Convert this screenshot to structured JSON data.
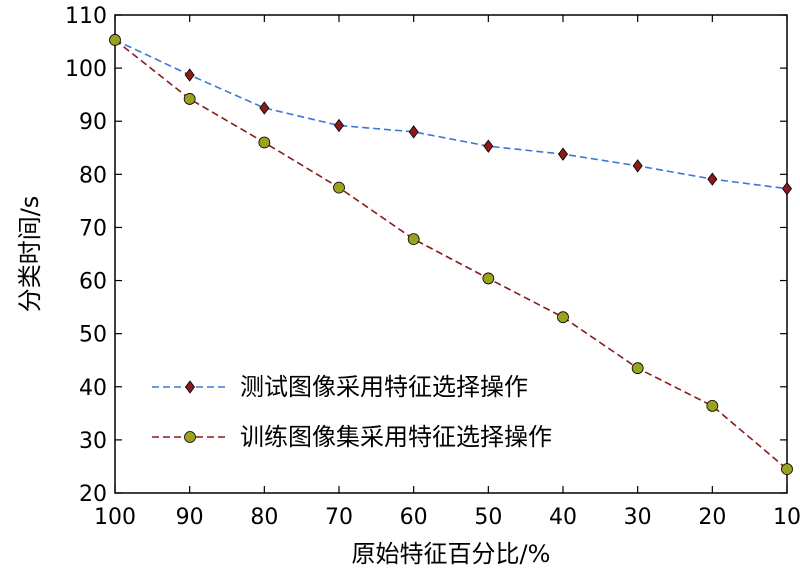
{
  "chart_data": {
    "type": "line",
    "title": "",
    "xlabel": "原始特征百分比/%",
    "ylabel": "分类时间/s",
    "x": [
      100,
      90,
      80,
      70,
      60,
      50,
      40,
      30,
      20,
      10
    ],
    "x_reversed": true,
    "ylim": [
      20,
      110
    ],
    "yticks": [
      20,
      30,
      40,
      50,
      60,
      70,
      80,
      90,
      100,
      110
    ],
    "grid": false,
    "legend_position": "bottom-left",
    "series": [
      {
        "name": "测试图像采用特征选择操作",
        "marker": "diamond",
        "line_color": "#3a78d8",
        "marker_color": "#8b1a1a",
        "values": [
          105.3,
          98.7,
          92.5,
          89.2,
          88.0,
          85.3,
          83.8,
          81.6,
          79.1,
          77.3
        ]
      },
      {
        "name": "训练图像集采用特征选择操作",
        "marker": "circle",
        "line_color": "#8b1a1a",
        "marker_color": "#9aa31e",
        "values": [
          105.3,
          94.2,
          86.0,
          77.5,
          67.8,
          60.4,
          53.1,
          43.5,
          36.4,
          24.5
        ]
      }
    ]
  }
}
